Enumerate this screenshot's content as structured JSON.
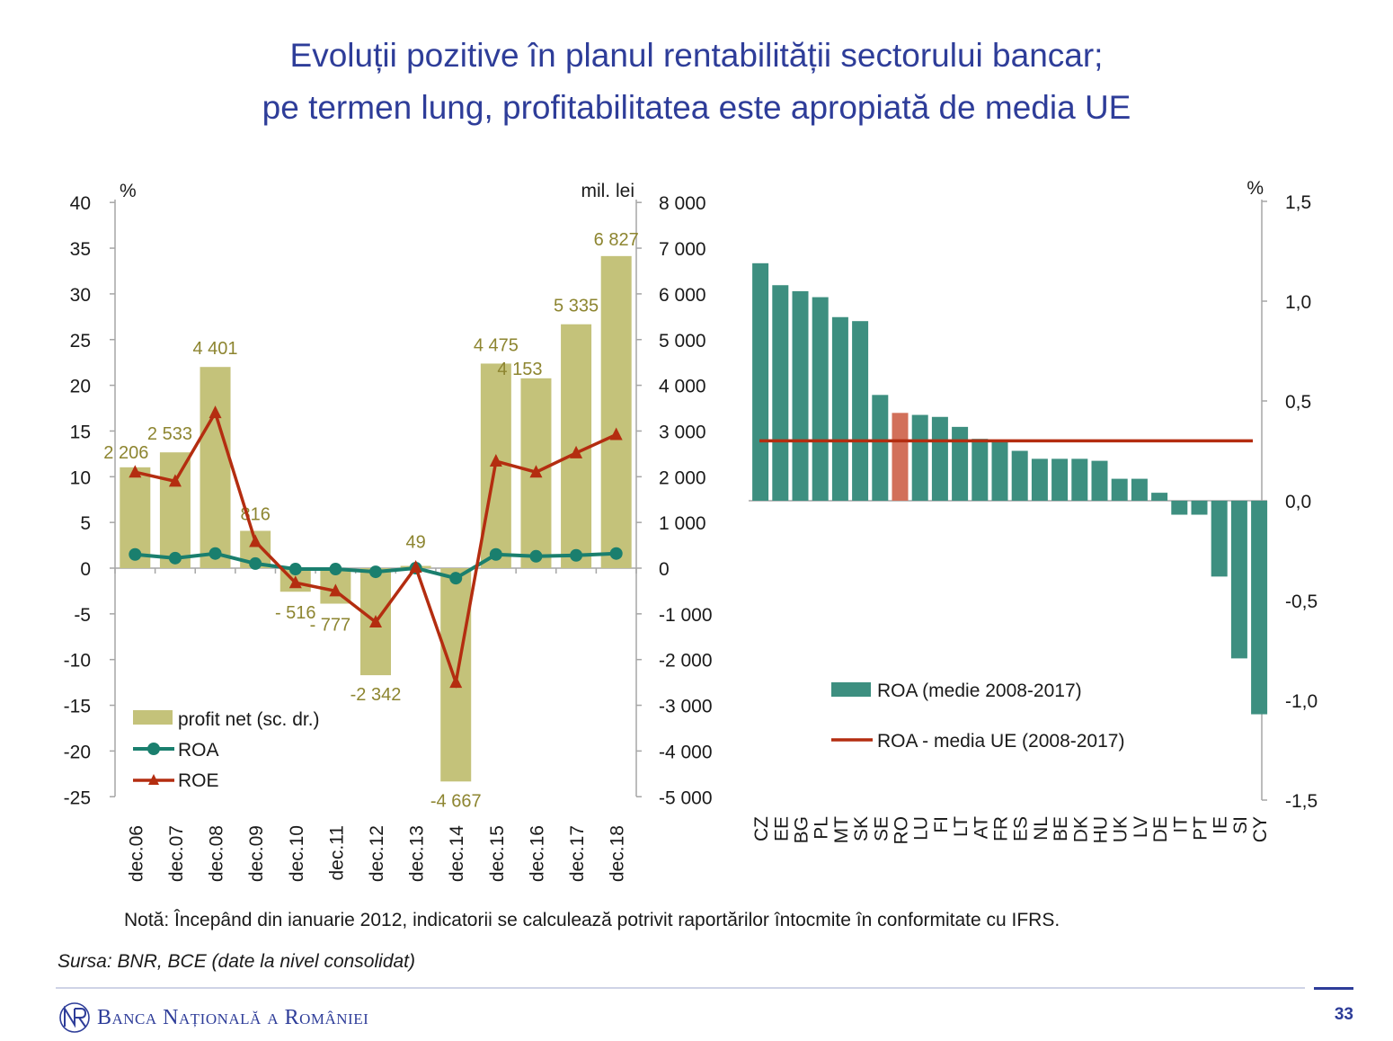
{
  "title": {
    "line1": "Evoluții pozitive în planul rentabilității sectorului bancar;",
    "line2": "pe termen lung, profitabilitatea este apropiată de media UE"
  },
  "colors": {
    "title": "#2e3d99",
    "profit_bar": "#c4c27a",
    "profit_label": "#8d8530",
    "roa_line": "#1a7f6e",
    "roe_line": "#b42d10",
    "country_bar": "#3d8f80",
    "romania_bar": "#d2705a",
    "eu_mean_line": "#b42d10"
  },
  "chart_data": [
    {
      "type": "bar",
      "categories": [
        "dec.06",
        "dec.07",
        "dec.08",
        "dec.09",
        "dec.10",
        "dec.11",
        "dec.12",
        "dec.13",
        "dec.14",
        "dec.15",
        "dec.16",
        "dec.17",
        "dec.18"
      ],
      "left_axis": {
        "unit": "%",
        "ylim": [
          -25,
          40
        ],
        "ticks": [
          "40",
          "35",
          "30",
          "25",
          "20",
          "15",
          "10",
          "5",
          "0",
          "-5",
          "-10",
          "-15",
          "-20",
          "-25"
        ]
      },
      "right_axis": {
        "unit": "mil. lei",
        "ylim": [
          -5000,
          8000
        ],
        "ticks": [
          "8 000",
          "7 000",
          "6 000",
          "5 000",
          "4 000",
          "3 000",
          "2 000",
          "1 000",
          "0",
          "-1 000",
          "-2 000",
          "-3 000",
          "-4 000",
          "-5 000"
        ]
      },
      "series": [
        {
          "name": "profit net (sc. dr.)",
          "type": "bar",
          "axis": "right",
          "values": [
            2206,
            2533,
            4401,
            816,
            -516,
            -777,
            -2342,
            49,
            -4667,
            4475,
            4153,
            5335,
            6827
          ],
          "labels": [
            "2 206",
            "2 533",
            "4 401",
            "816",
            "- 516",
            "- 777",
            "-2 342",
            "49",
            "-4 667",
            "4 475",
            "4 153",
            "5 335",
            "6 827"
          ]
        },
        {
          "name": "ROA",
          "type": "line",
          "axis": "left",
          "values": [
            1.5,
            1.1,
            1.6,
            0.5,
            -0.1,
            -0.1,
            -0.4,
            0.0,
            -1.1,
            1.5,
            1.3,
            1.4,
            1.6
          ]
        },
        {
          "name": "ROE",
          "type": "line",
          "axis": "left",
          "values": [
            10.5,
            9.5,
            17.0,
            2.9,
            -1.6,
            -2.5,
            -5.9,
            0.1,
            -12.5,
            11.7,
            10.5,
            12.6,
            14.6
          ]
        }
      ],
      "legend_position": "bottom-left",
      "grid": false
    },
    {
      "type": "bar",
      "categories": [
        "CZ",
        "EE",
        "BG",
        "PL",
        "MT",
        "SK",
        "SE",
        "RO",
        "LU",
        "FI",
        "LT",
        "AT",
        "FR",
        "ES",
        "NL",
        "BE",
        "DK",
        "HU",
        "UK",
        "LV",
        "DE",
        "IT",
        "PT",
        "IE",
        "SI",
        "CY"
      ],
      "axis": {
        "unit": "%",
        "ylim": [
          -1.5,
          1.5
        ],
        "ticks": [
          "1,5",
          "1,0",
          "0,5",
          "0,0",
          "-0,5",
          "-1,0",
          "-1,5"
        ],
        "side": "right"
      },
      "series": [
        {
          "name": "ROA (medie 2008-2017)",
          "type": "bar",
          "values": [
            1.19,
            1.08,
            1.05,
            1.02,
            0.92,
            0.9,
            0.53,
            0.44,
            0.43,
            0.42,
            0.37,
            0.31,
            0.3,
            0.25,
            0.21,
            0.21,
            0.21,
            0.2,
            0.11,
            0.11,
            0.04,
            -0.07,
            -0.07,
            -0.38,
            -0.79,
            -1.07
          ],
          "highlight": "RO"
        },
        {
          "name": "ROA - media UE (2008-2017)",
          "type": "line",
          "value": 0.3
        }
      ],
      "legend_position": "bottom-center",
      "grid": false
    }
  ],
  "note": "Notă: Începând din ianuarie 2012, indicatorii se calculează potrivit raportărilor întocmite în conformitate cu IFRS.",
  "source": "Sursa: BNR, BCE (date la nivel consolidat)",
  "footer": {
    "brand": "Banca Națională a României",
    "page_number": "33"
  }
}
